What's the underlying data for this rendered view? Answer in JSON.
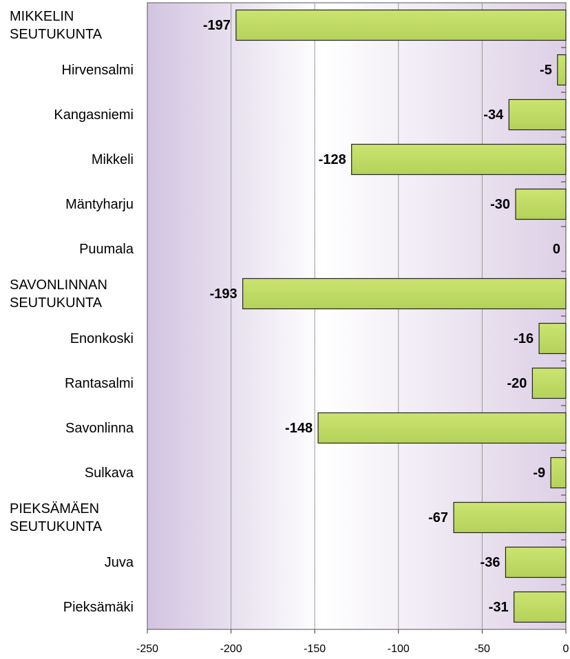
{
  "chart_data": {
    "type": "bar",
    "orientation": "horizontal",
    "categories": [
      "MIKKELIN SEUTUKUNTA",
      "Hirvensalmi",
      "Kangasniemi",
      "Mikkeli",
      "Mäntyharju",
      "Puumala",
      "SAVONLINNAN SEUTUKUNTA",
      "Enonkoski",
      "Rantasalmi",
      "Savonlinna",
      "Sulkava",
      "PIEKSÄMÄEN SEUTUKUNTA",
      "Juva",
      "Pieksämäki"
    ],
    "values": [
      -197,
      -5,
      -34,
      -128,
      -30,
      0,
      -193,
      -16,
      -20,
      -148,
      -9,
      -67,
      -36,
      -31
    ],
    "color": "#c0dc64",
    "xlim": [
      -250,
      0
    ],
    "xticks": [
      -250,
      -200,
      -150,
      -100,
      -50,
      0
    ],
    "grid": true
  }
}
